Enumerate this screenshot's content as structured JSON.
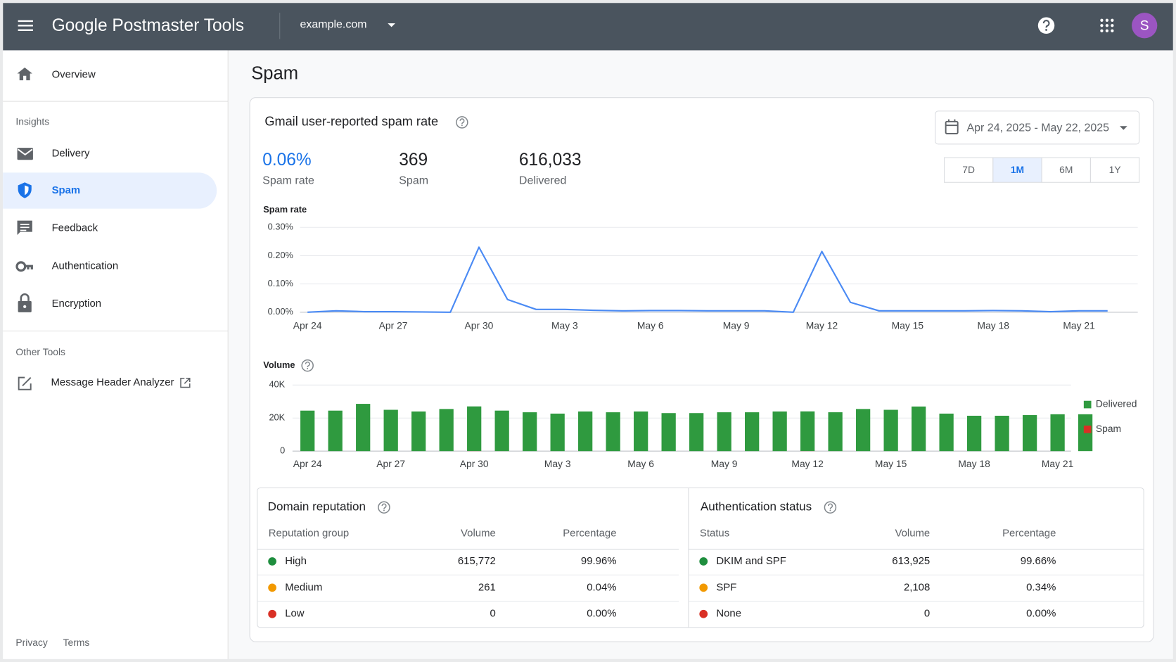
{
  "header": {
    "product": "Google Postmaster Tools",
    "domain": "example.com",
    "avatar": "S"
  },
  "nav": {
    "overview": "Overview",
    "insights_heading": "Insights",
    "insights": [
      "Delivery",
      "Spam",
      "Feedback",
      "Authentication",
      "Encryption"
    ],
    "selected": 1,
    "other_heading": "Other Tools",
    "other": [
      "Message Header Analyzer"
    ],
    "footer": [
      "Privacy",
      "Terms"
    ]
  },
  "page_title": "Spam",
  "card": {
    "title": "Gmail user-reported spam rate",
    "date_range": "Apr 24, 2025 - May 22, 2025",
    "ranges": [
      "7D",
      "1M",
      "6M",
      "1Y"
    ],
    "selected_range": 1,
    "stats": [
      {
        "value": "0.06%",
        "label": "Spam rate"
      },
      {
        "value": "369",
        "label": "Spam"
      },
      {
        "value": "616,033",
        "label": "Delivered"
      }
    ]
  },
  "chart_data": [
    {
      "type": "line",
      "title": "Spam rate",
      "categories": [
        "Apr 24",
        null,
        null,
        "Apr 27",
        null,
        null,
        "Apr 30",
        null,
        null,
        "May 3",
        null,
        null,
        "May 6",
        null,
        null,
        "May 9",
        null,
        null,
        "May 12",
        null,
        null,
        "May 15",
        null,
        null,
        "May 18",
        null,
        null,
        "May 21",
        null
      ],
      "values": [
        0.0,
        0.005,
        0.002,
        0.002,
        0.001,
        0.0,
        0.23,
        0.045,
        0.01,
        0.01,
        0.007,
        0.005,
        0.006,
        0.006,
        0.005,
        0.005,
        0.005,
        0.0,
        0.215,
        0.035,
        0.005,
        0.005,
        0.005,
        0.005,
        0.006,
        0.005,
        0.002,
        0.005,
        0.005
      ],
      "color": "#4a8af4",
      "ylim": [
        0,
        0.3
      ],
      "yticks": [
        {
          "value": 0,
          "label": "0.00%"
        },
        {
          "value": 0.1,
          "label": "0.10%"
        },
        {
          "value": 0.2,
          "label": "0.20%"
        },
        {
          "value": 0.3,
          "label": "0.30%"
        }
      ],
      "grid": true
    },
    {
      "type": "bar",
      "stacked": true,
      "title": "Volume",
      "categories": [
        "Apr 24",
        null,
        null,
        "Apr 27",
        null,
        null,
        "Apr 30",
        null,
        null,
        "May 3",
        null,
        null,
        "May 6",
        null,
        null,
        "May 9",
        null,
        null,
        "May 12",
        null,
        null,
        "May 15",
        null,
        null,
        "May 18",
        null,
        null,
        "May 21",
        null
      ],
      "series": [
        {
          "name": "Delivered",
          "color": "#2f9a3f",
          "values": [
            24500,
            24500,
            28600,
            25000,
            24000,
            25500,
            27000,
            24500,
            23500,
            22700,
            24000,
            23500,
            24000,
            23000,
            23000,
            23500,
            23500,
            24000,
            24000,
            23500,
            25500,
            25000,
            27000,
            22700,
            21400,
            21400,
            21800,
            22300,
            22300
          ]
        },
        {
          "name": "Spam",
          "color": "#d93025",
          "values": [
            0,
            1,
            1,
            1,
            0,
            0,
            62,
            11,
            2,
            2,
            2,
            1,
            1,
            1,
            1,
            1,
            1,
            0,
            52,
            9,
            1,
            1,
            1,
            1,
            1,
            1,
            0,
            1,
            1
          ]
        }
      ],
      "ylim": [
        0,
        40000
      ],
      "yticks": [
        0,
        {
          "value": 20000,
          "label": "20K"
        },
        {
          "value": 40000,
          "label": "40K"
        }
      ],
      "grid": true,
      "legend": "right"
    }
  ],
  "domain_reputation": {
    "title": "Domain reputation",
    "columns": [
      "Reputation group",
      "Volume",
      "Percentage"
    ],
    "rows": [
      [
        "High",
        "615,772",
        "99.96%"
      ],
      [
        "Medium",
        "261",
        "0.04%"
      ],
      [
        "Low",
        "0",
        "0.00%"
      ]
    ],
    "dot_colors": [
      "#1e8e3e",
      "#f29900",
      "#d93025"
    ]
  },
  "authentication_status": {
    "title": "Authentication status",
    "columns": [
      "Status",
      "Volume",
      "Percentage"
    ],
    "rows": [
      [
        "DKIM and SPF",
        "613,925",
        "99.66%"
      ],
      [
        "SPF",
        "2,108",
        "0.34%"
      ],
      [
        "None",
        "0",
        "0.00%"
      ]
    ],
    "dot_colors": [
      "#1e8e3e",
      "#f29900",
      "#d93025"
    ]
  }
}
